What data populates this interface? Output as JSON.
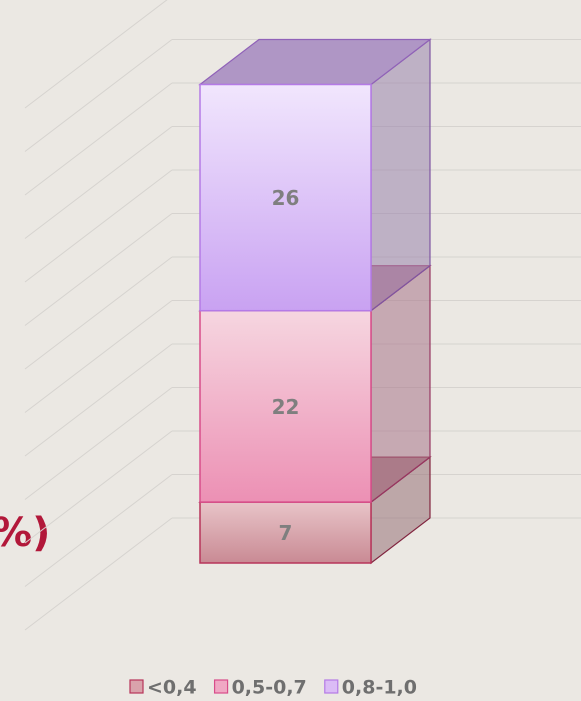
{
  "chart_data": {
    "type": "bar3d_stacked",
    "annotation": "%)",
    "categories": [
      null
    ],
    "series": [
      {
        "name": "<0,4",
        "color": "#d9a2ab",
        "values": [
          7
        ]
      },
      {
        "name": "0,5-0,7",
        "color": "#f0a8c4",
        "values": [
          22
        ]
      },
      {
        "name": "0,8-1,0",
        "color": "#dbbcf6",
        "values": [
          26
        ]
      }
    ],
    "ylim": [
      0,
      60
    ],
    "yticks": [
      0,
      5,
      10,
      15,
      20,
      25,
      30,
      35,
      40,
      45,
      50,
      55,
      60
    ],
    "grid": true,
    "legend": "bottom"
  }
}
